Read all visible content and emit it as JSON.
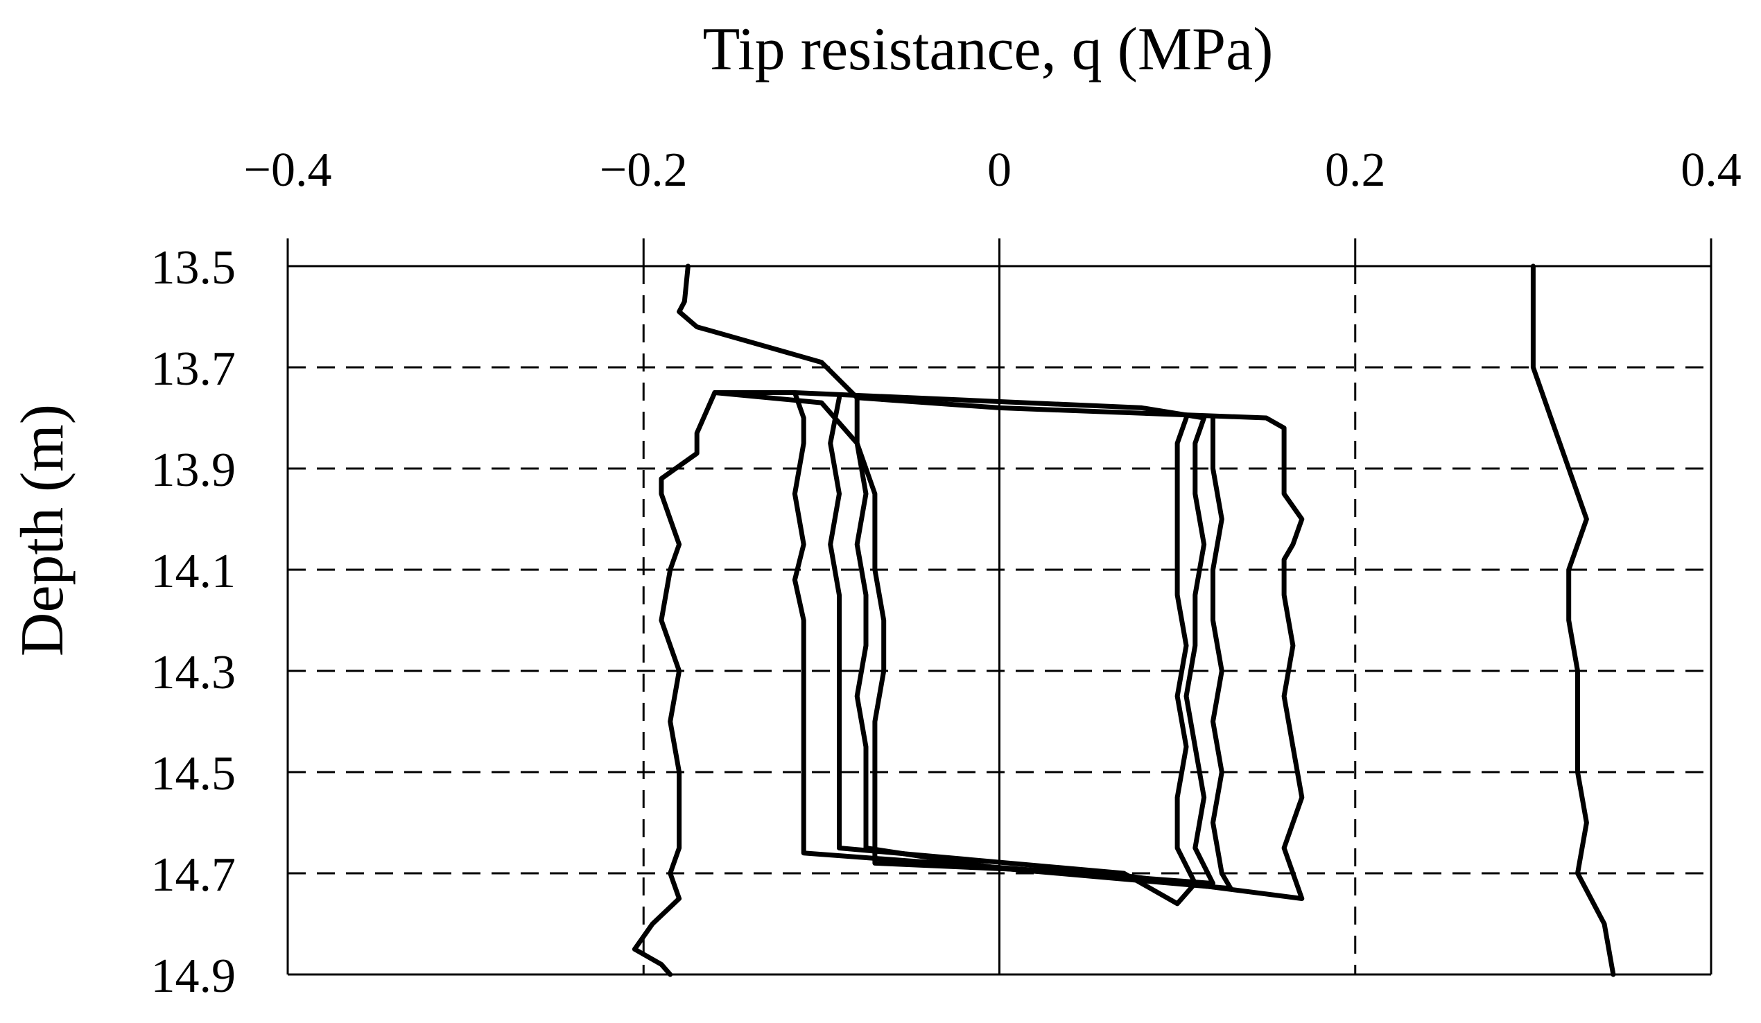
{
  "chart_data": {
    "type": "line",
    "title": "Tip resistance, q (MPa)",
    "xlabel": "Tip resistance, q (MPa)",
    "ylabel": "Depth (m)",
    "xlim": [
      -0.4,
      0.4
    ],
    "ylim": [
      13.5,
      14.9
    ],
    "y_inverted": true,
    "x_axis_position": "top",
    "x_tick_values": [
      -0.4,
      -0.2,
      0,
      0.2,
      0.4
    ],
    "x_tick_labels": [
      "−0.4",
      "−0.2",
      "0",
      "0.2",
      "0.4"
    ],
    "y_tick_values": [
      13.5,
      13.7,
      13.9,
      14.1,
      14.3,
      14.5,
      14.7,
      14.9
    ],
    "y_tick_labels": [
      "13.5",
      "13.7",
      "13.9",
      "14.1",
      "14.3",
      "14.5",
      "14.7",
      "14.9"
    ],
    "grid": "dashed",
    "legend": "none",
    "series": [
      {
        "points": [
          [
            -0.175,
            13.5
          ],
          [
            -0.177,
            13.57
          ],
          [
            -0.18,
            13.59
          ],
          [
            -0.17,
            13.62
          ],
          [
            -0.1,
            13.69
          ],
          [
            -0.08,
            13.76
          ],
          [
            0,
            13.78
          ],
          [
            0.15,
            13.8
          ],
          [
            0.16,
            13.82
          ],
          [
            0.16,
            13.88
          ],
          [
            0.16,
            13.95
          ],
          [
            0.17,
            14.0
          ],
          [
            0.165,
            14.05
          ],
          [
            0.16,
            14.08
          ],
          [
            0.16,
            14.15
          ],
          [
            0.165,
            14.25
          ],
          [
            0.16,
            14.35
          ],
          [
            0.165,
            14.45
          ],
          [
            0.17,
            14.55
          ],
          [
            0.16,
            14.65
          ],
          [
            0.17,
            14.75
          ],
          [
            0.06,
            14.7
          ],
          [
            -0.07,
            14.68
          ],
          [
            -0.07,
            14.6
          ],
          [
            -0.07,
            14.5
          ],
          [
            -0.07,
            14.4
          ],
          [
            -0.065,
            14.3
          ],
          [
            -0.065,
            14.2
          ],
          [
            -0.07,
            14.1
          ],
          [
            -0.07,
            14.0
          ],
          [
            -0.07,
            13.95
          ],
          [
            -0.08,
            13.85
          ],
          [
            -0.1,
            13.77
          ],
          [
            -0.16,
            13.75
          ]
        ]
      },
      {
        "points": [
          [
            -0.16,
            13.75
          ],
          [
            -0.17,
            13.83
          ],
          [
            -0.17,
            13.87
          ],
          [
            -0.19,
            13.92
          ],
          [
            -0.19,
            13.95
          ],
          [
            -0.185,
            14.0
          ],
          [
            -0.18,
            14.05
          ],
          [
            -0.185,
            14.1
          ],
          [
            -0.19,
            14.2
          ],
          [
            -0.18,
            14.3
          ],
          [
            -0.185,
            14.4
          ],
          [
            -0.18,
            14.5
          ],
          [
            -0.18,
            14.6
          ],
          [
            -0.18,
            14.65
          ],
          [
            -0.185,
            14.7
          ],
          [
            -0.18,
            14.75
          ],
          [
            -0.195,
            14.8
          ],
          [
            -0.205,
            14.85
          ],
          [
            -0.19,
            14.88
          ],
          [
            -0.185,
            14.9
          ]
        ]
      },
      {
        "points": [
          [
            -0.16,
            13.75
          ],
          [
            -0.115,
            13.75
          ],
          [
            0.08,
            13.78
          ],
          [
            0.115,
            13.8
          ],
          [
            0.11,
            13.85
          ],
          [
            0.11,
            13.95
          ],
          [
            0.115,
            14.05
          ],
          [
            0.11,
            14.15
          ],
          [
            0.11,
            14.25
          ],
          [
            0.105,
            14.35
          ],
          [
            0.11,
            14.45
          ],
          [
            0.115,
            14.55
          ],
          [
            0.11,
            14.65
          ],
          [
            0.12,
            14.72
          ],
          [
            -0.11,
            14.66
          ],
          [
            -0.11,
            14.6
          ],
          [
            -0.11,
            14.5
          ],
          [
            -0.11,
            14.4
          ],
          [
            -0.11,
            14.3
          ],
          [
            -0.11,
            14.2
          ],
          [
            -0.115,
            14.12
          ],
          [
            -0.11,
            14.05
          ],
          [
            -0.115,
            13.95
          ],
          [
            -0.11,
            13.85
          ],
          [
            -0.11,
            13.8
          ],
          [
            -0.115,
            13.75
          ]
        ]
      },
      {
        "points": [
          [
            -0.09,
            13.76
          ],
          [
            -0.095,
            13.85
          ],
          [
            -0.09,
            13.95
          ],
          [
            -0.095,
            14.05
          ],
          [
            -0.09,
            14.15
          ],
          [
            -0.09,
            14.25
          ],
          [
            -0.09,
            14.35
          ],
          [
            -0.09,
            14.45
          ],
          [
            -0.09,
            14.55
          ],
          [
            -0.09,
            14.65
          ],
          [
            0.07,
            14.7
          ],
          [
            0.1,
            14.76
          ],
          [
            0.11,
            14.72
          ],
          [
            0.1,
            14.65
          ],
          [
            0.1,
            14.55
          ],
          [
            0.105,
            14.45
          ],
          [
            0.1,
            14.35
          ],
          [
            0.105,
            14.25
          ],
          [
            0.1,
            14.15
          ],
          [
            0.1,
            14.05
          ],
          [
            0.1,
            13.95
          ],
          [
            0.1,
            13.85
          ],
          [
            0.105,
            13.8
          ]
        ]
      },
      {
        "points": [
          [
            -0.08,
            13.76
          ],
          [
            -0.08,
            13.85
          ],
          [
            -0.075,
            13.95
          ],
          [
            -0.08,
            14.05
          ],
          [
            -0.075,
            14.15
          ],
          [
            -0.075,
            14.25
          ],
          [
            -0.08,
            14.35
          ],
          [
            -0.075,
            14.45
          ],
          [
            -0.075,
            14.55
          ],
          [
            -0.075,
            14.65
          ],
          [
            0.0,
            14.69
          ],
          [
            0.13,
            14.73
          ],
          [
            0.125,
            14.7
          ],
          [
            0.12,
            14.6
          ],
          [
            0.125,
            14.5
          ],
          [
            0.12,
            14.4
          ],
          [
            0.125,
            14.3
          ],
          [
            0.12,
            14.2
          ],
          [
            0.12,
            14.1
          ],
          [
            0.125,
            14.0
          ],
          [
            0.12,
            13.9
          ],
          [
            0.12,
            13.8
          ]
        ]
      },
      {
        "points": [
          [
            0.3,
            13.5
          ],
          [
            0.3,
            13.7
          ],
          [
            0.31,
            13.8
          ],
          [
            0.32,
            13.9
          ],
          [
            0.33,
            14.0
          ],
          [
            0.32,
            14.1
          ],
          [
            0.32,
            14.2
          ],
          [
            0.325,
            14.3
          ],
          [
            0.325,
            14.4
          ],
          [
            0.325,
            14.5
          ],
          [
            0.33,
            14.6
          ],
          [
            0.325,
            14.7
          ],
          [
            0.34,
            14.8
          ],
          [
            0.345,
            14.9
          ]
        ]
      }
    ]
  }
}
